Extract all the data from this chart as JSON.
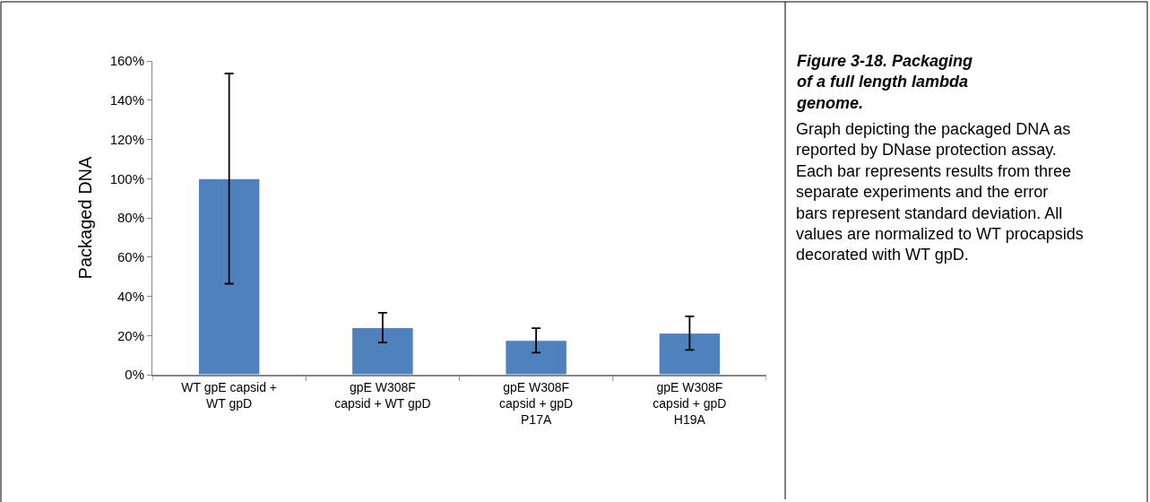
{
  "chart_data": {
    "type": "bar",
    "title": "Figure 3-18. Packaging of a full length lambda genome.",
    "annotations": [
      "Graph depicting the packaged DNA as reported by DNase protection assay. Each bar represents results from three separate experiments and the error bars represent standard deviation. All values are normalized to WT procapsids decorated with WT gpD."
    ],
    "ylabel": "Packaged DNA",
    "categories": [
      "WT gpE capsid + WT gpD",
      "gpE W308F capsid + WT gpD",
      "gpE W308F capsid + gpD P17A",
      "gpE W308F capsid + gpD H19A"
    ],
    "values": [
      100,
      24,
      17.5,
      21.2
    ],
    "errors": [
      53.6,
      7.6,
      6.2,
      8.6
    ],
    "color": "#4f81bd",
    "ylim": [
      0,
      160
    ],
    "yticks": [
      {
        "value": 0,
        "label": "0%"
      },
      {
        "value": 20,
        "label": "20%"
      },
      {
        "value": 40,
        "label": "40%"
      },
      {
        "value": 60,
        "label": "60%"
      },
      {
        "value": 80,
        "label": "80%"
      },
      {
        "value": 100,
        "label": "100%"
      },
      {
        "value": 120,
        "label": "120%"
      },
      {
        "value": 140,
        "label": "140%"
      },
      {
        "value": 160,
        "label": "160%"
      }
    ],
    "grid": false
  }
}
